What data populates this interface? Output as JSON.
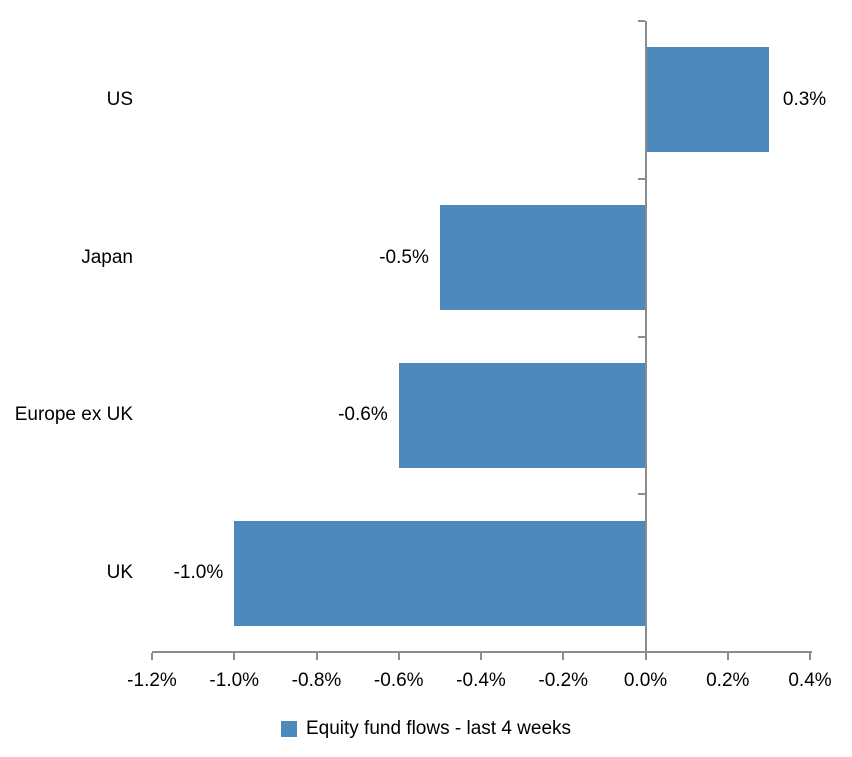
{
  "chart_data": {
    "type": "bar",
    "orientation": "horizontal",
    "title": "",
    "xlabel": "",
    "ylabel": "",
    "unit": "%",
    "categories": [
      "US",
      "Japan",
      "Europe ex UK",
      "UK"
    ],
    "values": [
      0.3,
      -0.5,
      -0.6,
      -1.0
    ],
    "data_labels": [
      "0.3%",
      "-0.5%",
      "-0.6%",
      "-1.0%"
    ],
    "x_tick_values": [
      -1.2,
      -1.0,
      -0.8,
      -0.6,
      -0.4,
      -0.2,
      0.0,
      0.2,
      0.4
    ],
    "x_tick_labels": [
      "-1.2%",
      "-1.0%",
      "-0.8%",
      "-0.6%",
      "-0.4%",
      "-0.2%",
      "0.0%",
      "0.2%",
      "0.4%"
    ],
    "xlim": [
      -1.2,
      0.4
    ],
    "grid": false,
    "legend": {
      "position": "bottom",
      "entries": [
        {
          "label": "Equity fund flows - last 4 weeks",
          "color": "#4E89BD"
        }
      ]
    },
    "colors": {
      "bar": "#4E89BD",
      "axis": "#8C8C8C",
      "text": "#000000",
      "background": "#FFFFFF"
    }
  }
}
